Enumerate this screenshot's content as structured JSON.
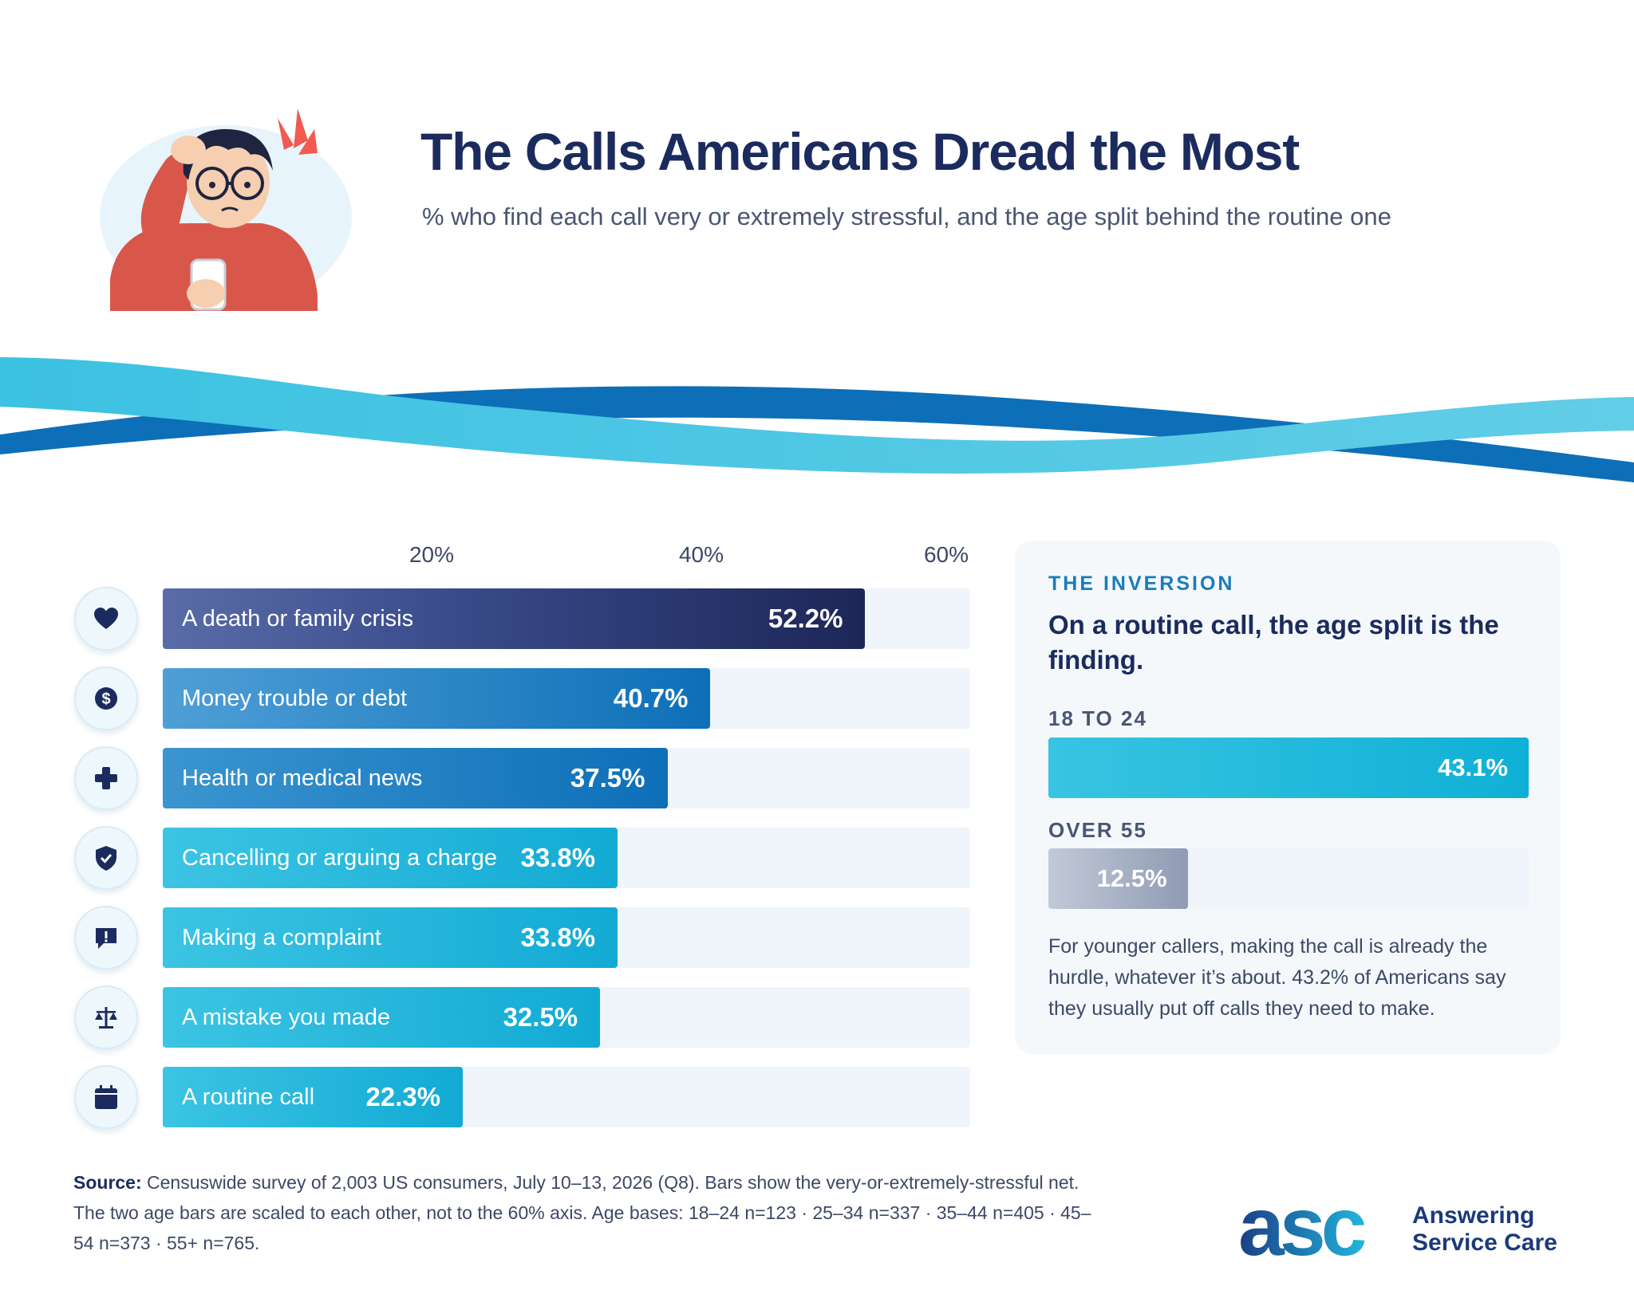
{
  "header": {
    "title": "The Calls Americans Dread the Most",
    "subtitle": "% who find each call very or extremely stressful, and the age split behind the routine one"
  },
  "chart_data": [
    {
      "type": "bar",
      "orientation": "horizontal",
      "categories": [
        "A death or family crisis",
        "Money trouble or debt",
        "Health or medical news",
        "Cancelling or arguing a charge",
        "Making a complaint",
        "A mistake you made",
        "A routine call"
      ],
      "values": [
        52.2,
        40.7,
        37.5,
        33.8,
        33.8,
        32.5,
        22.3
      ],
      "value_labels": [
        "52.2%",
        "40.7%",
        "37.5%",
        "33.8%",
        "33.8%",
        "32.5%",
        "22.3%"
      ],
      "icons": [
        "heart-icon",
        "dollar-icon",
        "medical-cross-icon",
        "shield-check-icon",
        "chat-alert-icon",
        "scales-icon",
        "calendar-icon"
      ],
      "x_ticks": [
        20,
        40,
        60
      ],
      "x_tick_labels": [
        "20%",
        "40%",
        "60%"
      ],
      "xlim": [
        0,
        60
      ],
      "grid": false,
      "colors": [
        "#27306a",
        "#0f79be",
        "#1379ba",
        "#1fb3d8",
        "#1fb3d8",
        "#1fb3d8",
        "#22b6da"
      ]
    },
    {
      "type": "bar",
      "orientation": "horizontal",
      "categories": [
        "18 TO 24",
        "OVER 55"
      ],
      "values": [
        43.1,
        12.5
      ],
      "value_labels": [
        "43.1%",
        "12.5%"
      ],
      "xlim": [
        0,
        43.1
      ],
      "colors": [
        "#1bb7da",
        "#9faabe"
      ]
    }
  ],
  "inversion": {
    "eyebrow": "THE INVERSION",
    "heading": "On a routine call, the age split is the finding.",
    "note": "For younger callers, making the call is already the hurdle, whatever it’s about. 43.2% of Americans say they usually put off calls they need to make."
  },
  "footer": {
    "source_label": "Source:",
    "source_text": "Censuswide survey of 2,003 US consumers, July 10–13, 2026 (Q8). Bars show the very-or-extremely-stressful net. The two age bars are scaled to each other, not to the 60% axis. Age bases: 18–24 n=123 · 25–34 n=337 · 35–44 n=405 · 45–54 n=373 · 55+ n=765.",
    "brand_mark": "asc",
    "brand_name_line1": "Answering",
    "brand_name_line2": "Service Care"
  }
}
